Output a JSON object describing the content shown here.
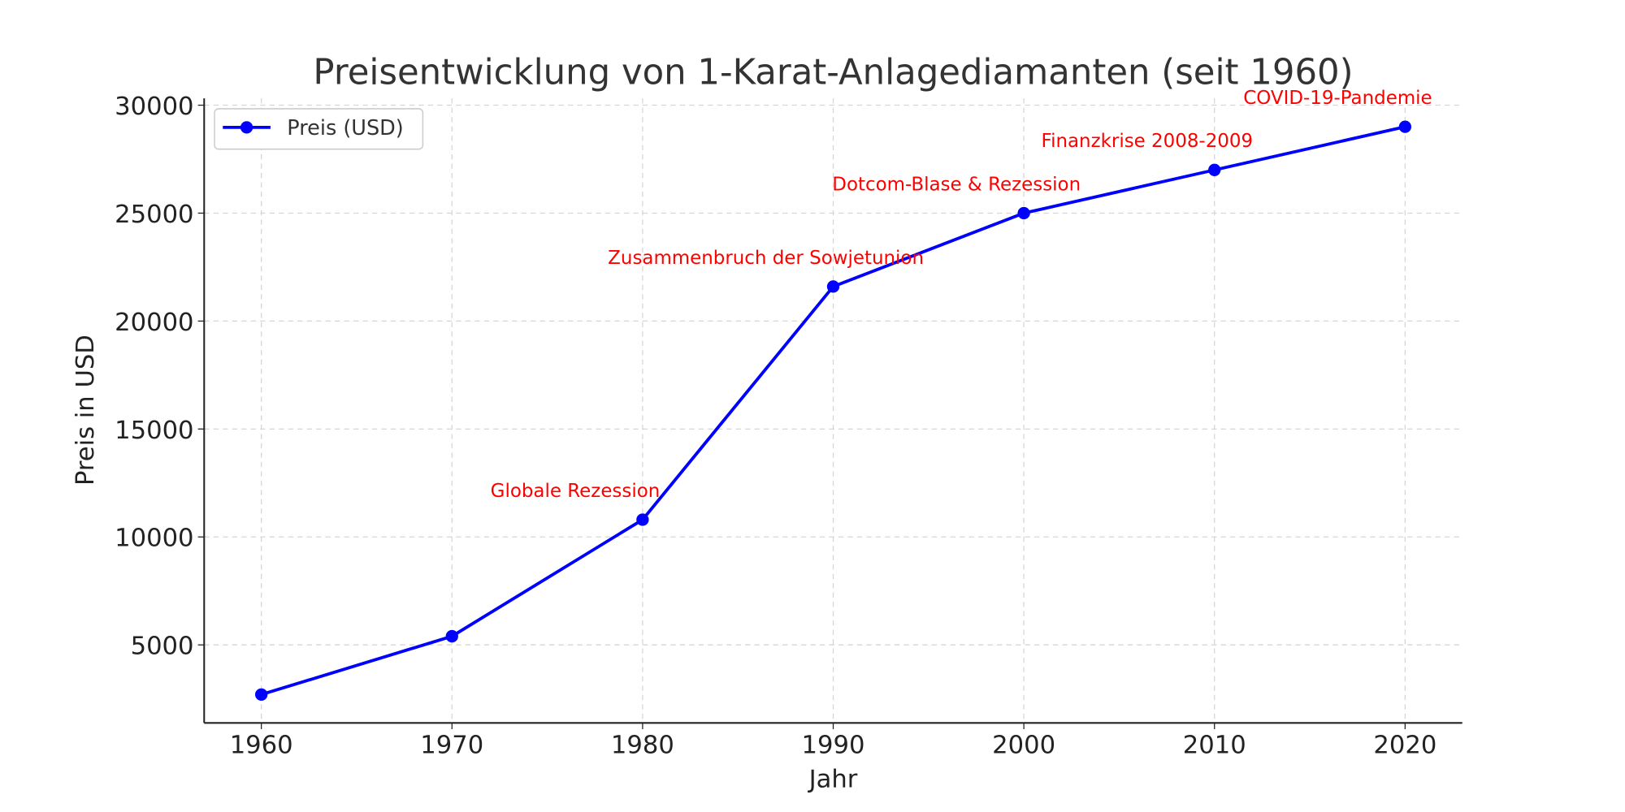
{
  "chart_data": {
    "type": "line",
    "title": "Preisentwicklung von 1-Karat-Anlagediamanten (seit 1960)",
    "xlabel": "Jahr",
    "ylabel": "Preis in USD",
    "x": [
      1960,
      1970,
      1980,
      1990,
      2000,
      2010,
      2020
    ],
    "series": [
      {
        "name": "Preis (USD)",
        "color": "#0000ff",
        "values": [
          2700,
          5400,
          10800,
          21600,
          25000,
          27000,
          29000
        ]
      }
    ],
    "xlim": [
      1957,
      2023
    ],
    "ylim": [
      1385,
      30315
    ],
    "xticks": [
      "1960",
      "1970",
      "1980",
      "1990",
      "2000",
      "2010",
      "2020"
    ],
    "yticks": [
      "5000",
      "10000",
      "15000",
      "20000",
      "25000",
      "30000"
    ],
    "grid": true,
    "legend": "upper-left",
    "annotations": [
      {
        "text": "Globale Rezession",
        "x": 1980,
        "y": 10800,
        "color": "#ff0000"
      },
      {
        "text": "Zusammenbruch der Sowjetunion",
        "x": 1990,
        "y": 21600,
        "color": "#ff0000"
      },
      {
        "text": "Dotcom-Blase & Rezession",
        "x": 2000,
        "y": 25000,
        "color": "#ff0000"
      },
      {
        "text": "Finanzkrise 2008-2009",
        "x": 2010,
        "y": 27000,
        "color": "#ff0000"
      },
      {
        "text": "COVID-19-Pandemie",
        "x": 2020,
        "y": 29000,
        "color": "#ff0000"
      }
    ]
  }
}
